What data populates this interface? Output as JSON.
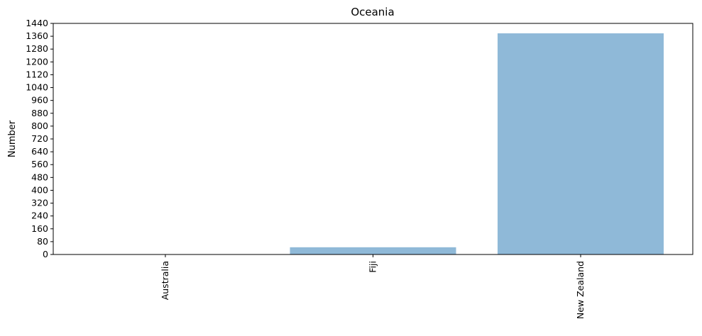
{
  "chart_data": {
    "type": "bar",
    "title": "Oceania",
    "xlabel": "",
    "ylabel": "Number",
    "categories": [
      "Australia",
      "Fiji",
      "New Zealand"
    ],
    "values": [
      0,
      45,
      1378
    ],
    "ylim": [
      0,
      1440
    ],
    "yticks": [
      0,
      80,
      160,
      240,
      320,
      400,
      480,
      560,
      640,
      720,
      800,
      880,
      960,
      1040,
      1120,
      1200,
      1280,
      1360,
      1440
    ],
    "bar_color": "#8fb9d8",
    "grid": false,
    "legend": "none"
  }
}
